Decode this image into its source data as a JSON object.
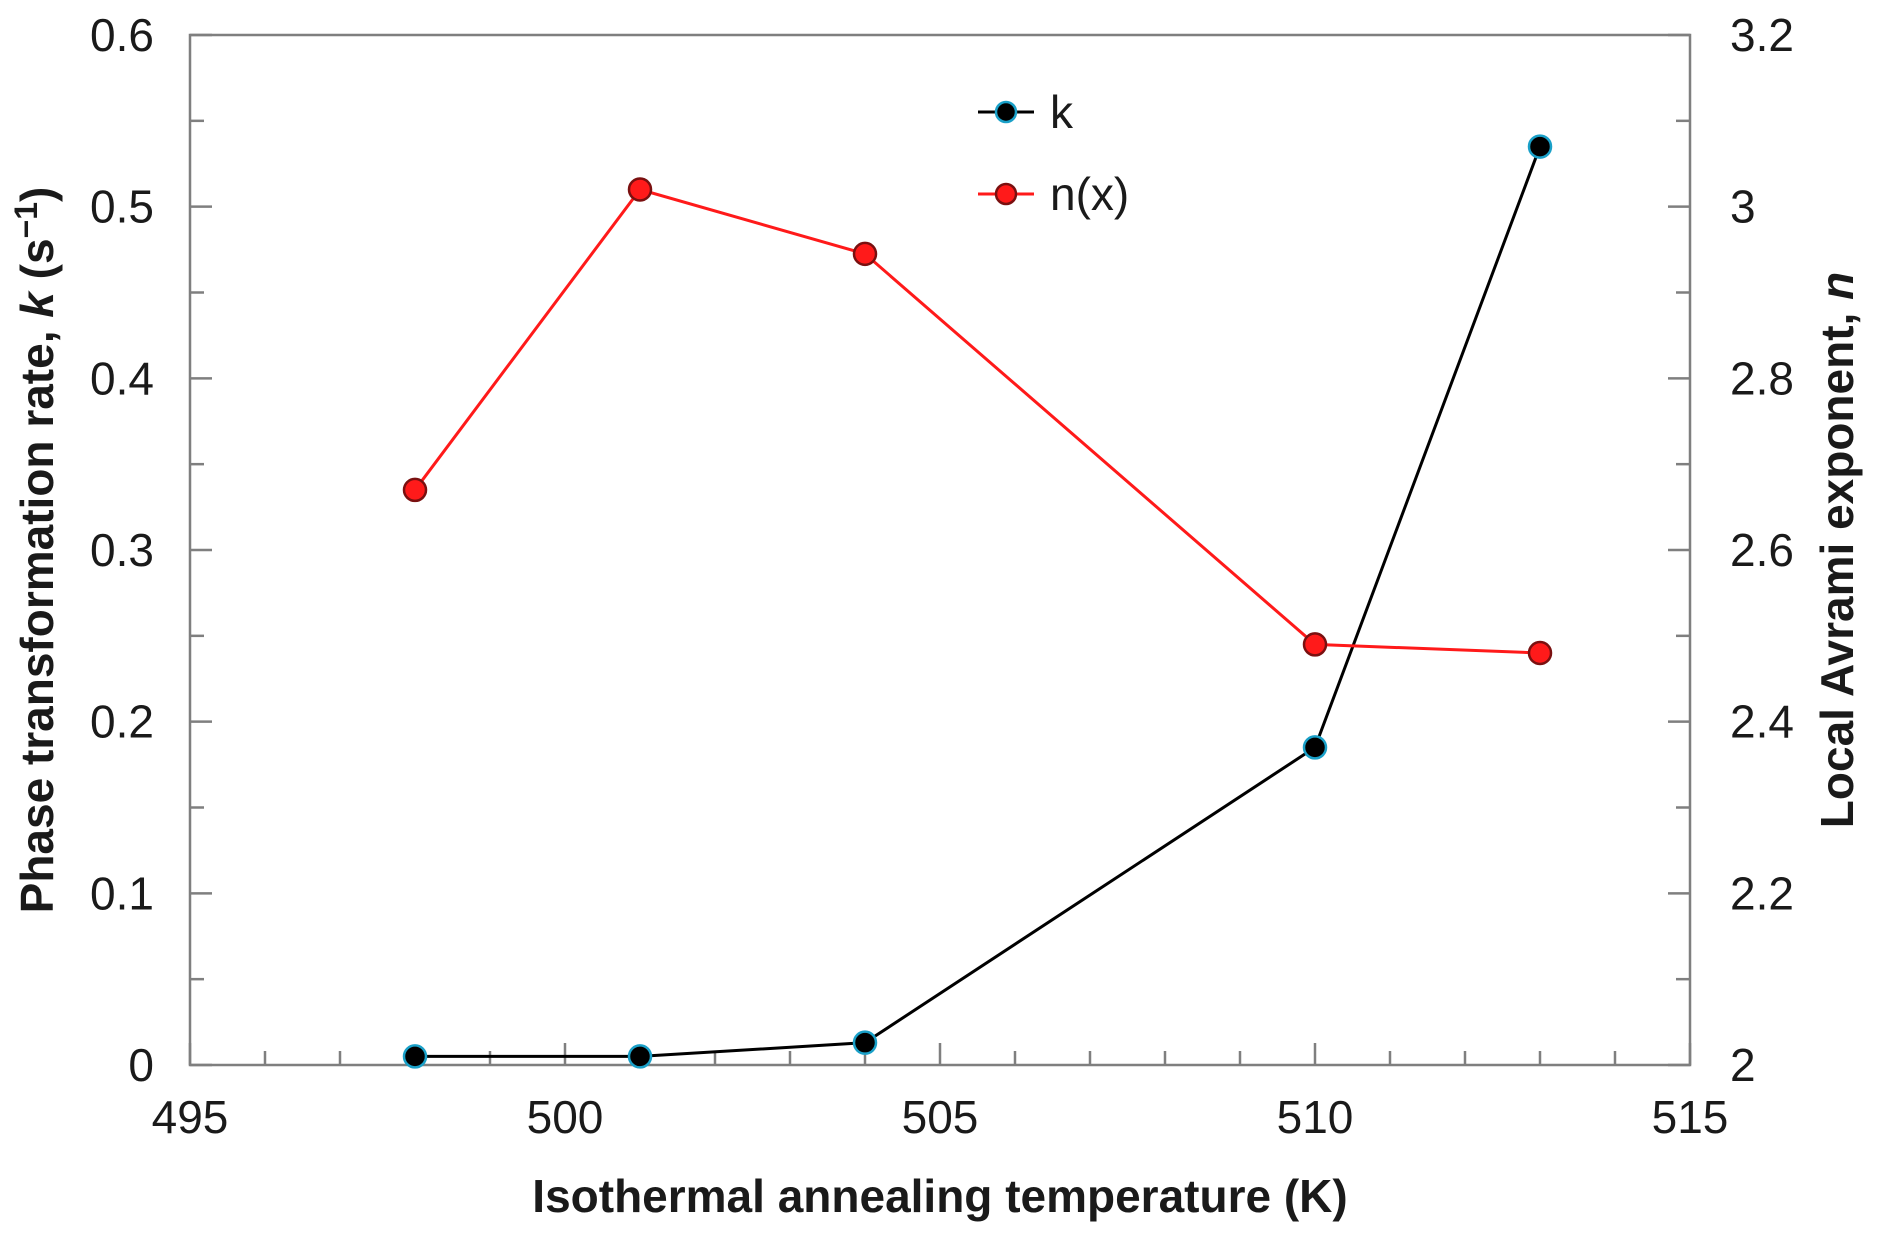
{
  "chart_data": {
    "type": "line",
    "title": "",
    "xlabel": "Isothermal annealing temperature (K)",
    "ylabel_left": {
      "prefix": "Phase transformation rate, ",
      "italic": "k",
      "unit": " (s",
      "sup": "−1",
      "close": ")"
    },
    "ylabel_right": {
      "prefix": "Local Avrami exponent, ",
      "italic": "n"
    },
    "xlim": [
      495,
      515
    ],
    "ylim_left": [
      0,
      0.6
    ],
    "ylim_right": [
      2,
      3.2
    ],
    "x_ticks": [
      "495",
      "500",
      "505",
      "510",
      "515"
    ],
    "y_left_ticks": [
      "0",
      "0.1",
      "0.2",
      "0.3",
      "0.4",
      "0.5",
      "0.6"
    ],
    "y_right_ticks": [
      "2",
      "2.2",
      "2.4",
      "2.6",
      "2.8",
      "3",
      "3.2"
    ],
    "series": [
      {
        "name": "k",
        "axis": "left",
        "color": "#000000",
        "marker_edge": "#1aa0c8",
        "x": [
          498,
          501,
          504,
          510,
          513
        ],
        "values": [
          0.005,
          0.005,
          0.013,
          0.185,
          0.535
        ]
      },
      {
        "name": "n(x)",
        "axis": "right",
        "color": "#ff1a1a",
        "marker_edge": "#7a1010",
        "x": [
          498,
          501,
          504,
          510,
          513
        ],
        "values": [
          2.67,
          3.02,
          2.945,
          2.49,
          2.48
        ]
      }
    ],
    "legend": "top-center",
    "grid": false
  }
}
